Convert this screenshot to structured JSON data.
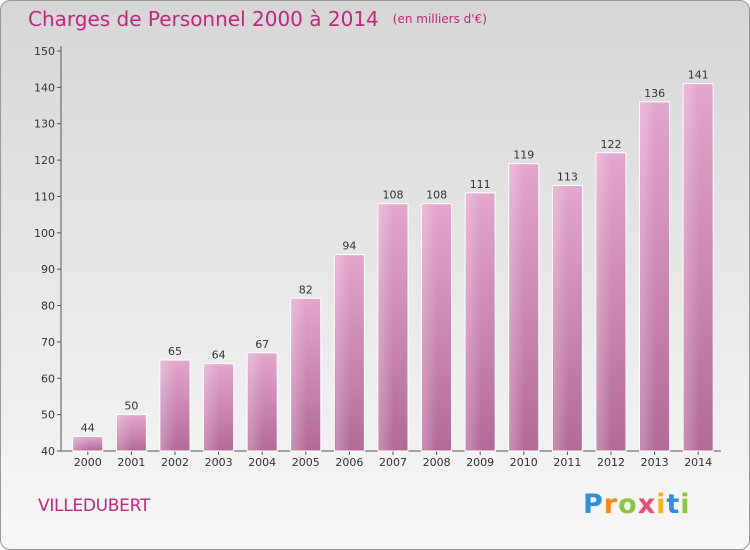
{
  "chart_data": {
    "type": "bar",
    "title": "Charges de Personnel 2000 à 2014",
    "subtitle": "(en milliers d'€)",
    "categories": [
      "2000",
      "2001",
      "2002",
      "2003",
      "2004",
      "2005",
      "2006",
      "2007",
      "2008",
      "2009",
      "2010",
      "2011",
      "2012",
      "2013",
      "2014"
    ],
    "values": [
      44,
      50,
      65,
      64,
      67,
      82,
      94,
      108,
      108,
      111,
      119,
      113,
      122,
      136,
      141
    ],
    "ylim": [
      40,
      150
    ],
    "yticks": [
      40,
      50,
      60,
      70,
      80,
      90,
      100,
      110,
      120,
      130,
      140,
      150
    ],
    "bar_color": "#cc6fa6",
    "title_color": "#c0287e"
  },
  "commune": "VILLEDUBERT",
  "logo": {
    "letters": [
      "P",
      "r",
      "o",
      "x",
      "i",
      "t",
      "i"
    ],
    "colors": [
      "#2f8fd8",
      "#f28b1e",
      "#8cc63f",
      "#e94e77",
      "#f2b51e",
      "#2f8fd8",
      "#8cc63f"
    ]
  }
}
